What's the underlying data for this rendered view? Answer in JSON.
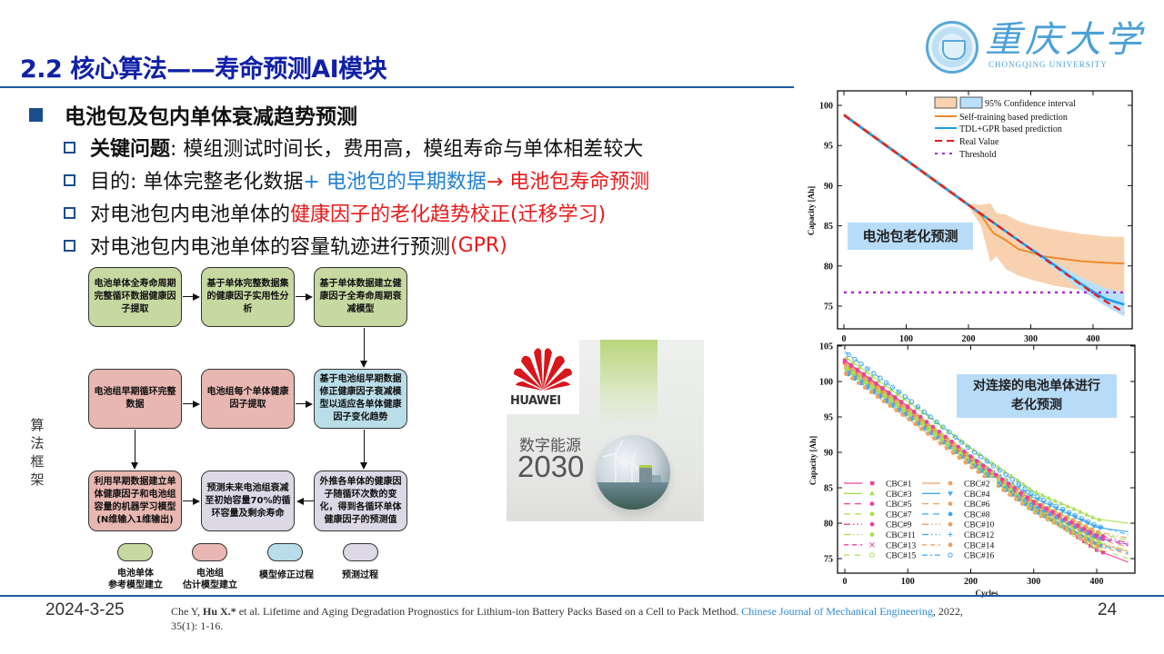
{
  "header": {
    "title": "2.2 核心算法——寿命预测AI模块",
    "logo": {
      "cn": "重庆大学",
      "en": "CHONGQING UNIVERSITY",
      "icon": "university-emblem-icon"
    }
  },
  "bullets": {
    "main": "电池包及包内单体衰减趋势预测",
    "sub": [
      {
        "parts": [
          {
            "text": "关键问题",
            "style": "bold"
          },
          {
            "text": ": 模组测试时间长，费用高，模组寿命与单体相差较大",
            "style": "normal"
          }
        ]
      },
      {
        "parts": [
          {
            "text": "目的: 单体完整老化数据",
            "style": "normal"
          },
          {
            "text": "+ 电池包的早期数据",
            "style": "blue"
          },
          {
            "text": "→ 电池包寿命预测",
            "style": "red"
          }
        ]
      },
      {
        "parts": [
          {
            "text": "对电池包内电池单体的",
            "style": "normal"
          },
          {
            "text": "健康因子的老化趋势校正(迁移学习)",
            "style": "red"
          }
        ]
      },
      {
        "parts": [
          {
            "text": "对电池包内电池单体的容量轨迹进行预测 ",
            "style": "normal"
          },
          {
            "text": "(GPR)",
            "style": "red"
          }
        ]
      }
    ]
  },
  "side_label": "算法框架",
  "flowchart": {
    "boxes": [
      {
        "id": "b1",
        "text": "电池单体全寿命周期完整循环数据健康因子提取",
        "color": "#c5d9a0"
      },
      {
        "id": "b2",
        "text": "基于单体完整数据集的健康因子实用性分析",
        "color": "#c5d9a0"
      },
      {
        "id": "b3",
        "text": "基于单体数据建立健康因子全寿命周期衰减模型",
        "color": "#c5d9a0"
      },
      {
        "id": "b4",
        "text": "电池组早期循环完整数据",
        "color": "#e8b7b1"
      },
      {
        "id": "b5",
        "text": "电池组每个单体健康因子提取",
        "color": "#e8b7b1"
      },
      {
        "id": "b6",
        "text": "基于电池组早期数据修正健康因子衰减模型以适应各单体健康因子变化趋势",
        "color": "#b9dde9"
      },
      {
        "id": "b7",
        "text": "利用早期数据建立单体健康因子和电池组容量的机器学习模型(N维输入1维输出)",
        "color": "#e8b7b1"
      },
      {
        "id": "b8",
        "text": "预测未来电池组衰减至初始容量70%的循环容量及剩余寿命",
        "color": "#dcd8e6"
      },
      {
        "id": "b9",
        "text": "外推各单体的健康因子随循环次数的变化，得到各循环单体健康因子的预测值",
        "color": "#dcd8e6"
      }
    ],
    "legend": [
      {
        "label": "电池单体\n参考模型建立",
        "color": "#c5d9a0"
      },
      {
        "label": "电池组\n估计模型建立",
        "color": "#e8b7b1"
      },
      {
        "label": "模型修正过程",
        "color": "#b9dde9"
      },
      {
        "label": "预测过程",
        "color": "#dcd8e6"
      }
    ]
  },
  "huawei_image": {
    "brand": "HUAWEI",
    "slogan": "数字能源",
    "year": "2030"
  },
  "chart_data": [
    {
      "type": "line",
      "title": "",
      "annotation": "电池包老化预测",
      "xlabel": "",
      "ylabel": "Capacity [Ah]",
      "xlim": [
        0,
        460
      ],
      "ylim": [
        72,
        102
      ],
      "xticks": [
        0,
        100,
        200,
        300,
        400
      ],
      "yticks": [
        75,
        80,
        85,
        90,
        95,
        100
      ],
      "grid": false,
      "legend_position": "upper right",
      "legend": [
        "95% Confidence interval",
        "Self-training based prediction",
        "TDL+GPR based prediction",
        "Real Value",
        "Threshold"
      ],
      "x": [
        0,
        50,
        100,
        150,
        200,
        220,
        240,
        260,
        280,
        300,
        320,
        340,
        360,
        380,
        400,
        420,
        450
      ],
      "series": [
        {
          "name": "Real Value",
          "color": "#e8191a",
          "style": "dashed",
          "values": [
            98.8,
            96.0,
            93.2,
            90.4,
            87.6,
            86.5,
            85.4,
            84.3,
            83.2,
            82.1,
            81.0,
            79.9,
            78.8,
            77.7,
            76.6,
            75.6,
            74.2
          ]
        },
        {
          "name": "TDL+GPR based prediction",
          "color": "#1aa0e8",
          "style": "solid",
          "values": [
            98.8,
            96.0,
            93.2,
            90.4,
            87.6,
            86.5,
            85.4,
            84.3,
            83.2,
            82.1,
            81.1,
            80.0,
            78.9,
            77.8,
            76.8,
            75.9,
            75.2
          ]
        },
        {
          "name": "Self-training based prediction",
          "color": "#f08a2c",
          "style": "solid",
          "values": [
            98.8,
            96.0,
            93.2,
            90.4,
            87.6,
            86.3,
            84.1,
            83.2,
            82.1,
            81.7,
            81.2,
            81.0,
            80.8,
            80.6,
            80.5,
            80.4,
            80.3
          ]
        },
        {
          "name": "Threshold",
          "color": "#b020d8",
          "style": "dotted",
          "values": [
            76.7,
            76.7,
            76.7,
            76.7,
            76.7,
            76.7,
            76.7,
            76.7,
            76.7,
            76.7,
            76.7,
            76.7,
            76.7,
            76.7,
            76.7,
            76.7,
            76.7
          ]
        }
      ],
      "confidence_bands": [
        {
          "name": "Self-training 95% CI",
          "color": "#f8c9a0",
          "x": [
            200,
            220,
            235,
            245,
            260,
            280,
            300,
            340,
            380,
            420,
            450
          ],
          "upper": [
            87.8,
            87.6,
            87.8,
            86.6,
            86.4,
            85.6,
            85.1,
            84.5,
            84.0,
            83.7,
            83.6
          ],
          "lower": [
            87.4,
            85.0,
            80.5,
            81.2,
            79.6,
            78.8,
            78.3,
            77.5,
            77.0,
            76.9,
            76.8
          ]
        },
        {
          "name": "TDL+GPR 95% CI",
          "color": "#b8e0fb",
          "x": [
            200,
            260,
            300,
            340,
            380,
            420,
            450
          ],
          "upper": [
            87.7,
            84.5,
            82.4,
            80.4,
            78.6,
            77.2,
            76.7
          ],
          "lower": [
            87.5,
            84.1,
            81.8,
            79.5,
            77.0,
            75.0,
            73.7
          ]
        }
      ]
    },
    {
      "type": "scatter",
      "title": "",
      "annotation": "对连接的电池单体进行老化预测",
      "xlabel": "Cycles",
      "ylabel": "Capacity [Ah]",
      "xlim": [
        0,
        460
      ],
      "ylim": [
        73,
        105
      ],
      "xticks": [
        0,
        100,
        200,
        300,
        400
      ],
      "yticks": [
        75,
        80,
        85,
        90,
        95,
        100,
        105
      ],
      "grid": false,
      "legend_position": "lower left",
      "x": [
        0,
        100,
        200,
        300,
        400,
        450
      ],
      "series": [
        {
          "name": "CBC#1",
          "color": "#f040a0",
          "marker": "square",
          "line": "solid",
          "values": [
            103.0,
            96.5,
            89.0,
            82.3,
            76.2,
            74.5
          ]
        },
        {
          "name": "CBC#2",
          "color": "#f0a060",
          "marker": "circle",
          "line": "solid",
          "values": [
            102.2,
            95.8,
            88.6,
            82.0,
            77.2,
            76.0
          ]
        },
        {
          "name": "CBC#3",
          "color": "#a8e050",
          "marker": "triangle-up",
          "line": "solid",
          "values": [
            103.5,
            97.2,
            90.6,
            84.5,
            80.6,
            80.0
          ]
        },
        {
          "name": "CBC#4",
          "color": "#40a8f0",
          "marker": "triangle-down",
          "line": "solid",
          "values": [
            101.6,
            95.6,
            89.2,
            83.6,
            79.4,
            78.8
          ]
        },
        {
          "name": "CBC#5",
          "color": "#f040a0",
          "marker": "hexagon",
          "line": "dashed",
          "values": [
            102.8,
            96.3,
            89.2,
            83.0,
            78.0,
            76.8
          ]
        },
        {
          "name": "CBC#6",
          "color": "#f0a060",
          "marker": "triangle-left",
          "line": "dashed",
          "values": [
            102.0,
            95.6,
            88.8,
            82.6,
            77.8,
            76.6
          ]
        },
        {
          "name": "CBC#7",
          "color": "#a8e050",
          "marker": "triangle-right",
          "line": "dashed",
          "values": [
            102.4,
            96.0,
            89.4,
            83.2,
            78.6,
            77.6
          ]
        },
        {
          "name": "CBC#8",
          "color": "#40a8f0",
          "marker": "circle",
          "line": "dashed",
          "values": [
            101.8,
            95.2,
            88.4,
            81.8,
            77.0,
            75.8
          ]
        },
        {
          "name": "CBC#9",
          "color": "#f040a0",
          "marker": "star",
          "line": "dash-dot-dot",
          "values": [
            102.6,
            96.0,
            89.0,
            82.8,
            78.4,
            77.2
          ]
        },
        {
          "name": "CBC#10",
          "color": "#f0a060",
          "marker": "octagon",
          "line": "dash-dot-dot",
          "values": [
            102.5,
            96.1,
            89.3,
            83.1,
            78.8,
            77.9
          ]
        },
        {
          "name": "CBC#11",
          "color": "#a8e050",
          "marker": "hexagon",
          "line": "dash-dot-dot",
          "values": [
            102.1,
            95.7,
            88.8,
            82.4,
            77.4,
            76.2
          ]
        },
        {
          "name": "CBC#12",
          "color": "#40a8f0",
          "marker": "plus",
          "line": "dash-dot-dot",
          "values": [
            101.4,
            95.1,
            88.5,
            82.4,
            78.0,
            77.0
          ]
        },
        {
          "name": "CBC#13",
          "color": "#f040a0",
          "marker": "x",
          "line": "short-dash",
          "values": [
            102.9,
            96.4,
            89.4,
            83.0,
            78.2,
            77.0
          ]
        },
        {
          "name": "CBC#14",
          "color": "#f0a060",
          "marker": "asterisk-box",
          "line": "short-dash",
          "values": [
            101.2,
            94.8,
            88.0,
            81.6,
            76.8,
            75.6
          ]
        },
        {
          "name": "CBC#15",
          "color": "#a8e050",
          "marker": "open-circle",
          "line": "dash",
          "values": [
            102.0,
            95.6,
            88.6,
            82.0,
            76.4,
            75.0
          ]
        },
        {
          "name": "CBC#16",
          "color": "#40a8f0",
          "marker": "open-circle",
          "line": "dash-dot",
          "values": [
            104.2,
            97.6,
            90.4,
            84.0,
            79.6,
            78.4
          ]
        }
      ]
    }
  ],
  "footer": {
    "date": "2024-3-25",
    "citation": {
      "pre": "Che Y, ",
      "author_bold": "Hu X.*",
      "mid": " et al. Lifetime and Aging Degradation Prognostics for Lithium-ion Battery Packs Based on a Cell to Pack Method. ",
      "journal": "Chinese Journal of Mechanical Engineering",
      "post": ", 2022, 35(1): 1-16."
    },
    "page": "24"
  },
  "colors": {
    "title": "#1020a8",
    "rule": "#1f5a9e",
    "accent_blue": "#1f7fd0",
    "accent_red": "#e8191a",
    "annotation_bg": "#b8dcf8"
  }
}
